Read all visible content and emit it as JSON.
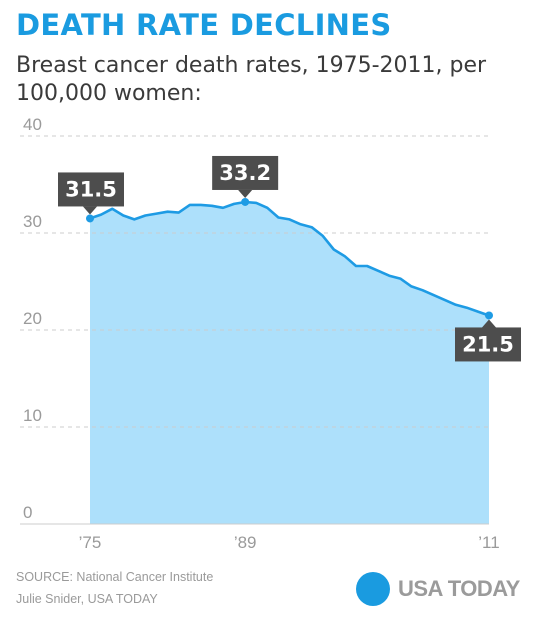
{
  "title": "DEATH RATE DECLINES",
  "subtitle": "Breast cancer death rates, 1975-2011, per 100,000 women:",
  "source_line": "SOURCE:  National Cancer Institute",
  "credit_line": "Julie Snider, USA TODAY",
  "brand": "USA TODAY",
  "colors": {
    "title": "#1a9be0",
    "line": "#1e9be4",
    "area": "#ade0fb",
    "callout": "#4d4d4d",
    "grid": "#cccccc",
    "tick_label": "#9a9a9a",
    "brand_dot": "#1a9be0",
    "brand_text": "#9b9b9b"
  },
  "chart_data": {
    "type": "area",
    "ylim": [
      0,
      40
    ],
    "xlim": [
      1975,
      2011
    ],
    "yticks": [
      {
        "value": 0,
        "label": "0"
      },
      {
        "value": 10,
        "label": "10"
      },
      {
        "value": 20,
        "label": "20"
      },
      {
        "value": 30,
        "label": "30"
      },
      {
        "value": 40,
        "label": "40"
      }
    ],
    "xticks": [
      {
        "value": 1975,
        "label": "’75"
      },
      {
        "value": 1989,
        "label": "’89"
      },
      {
        "value": 2011,
        "label": "’11"
      }
    ],
    "grid": true,
    "x": [
      1975,
      1976,
      1977,
      1978,
      1979,
      1980,
      1981,
      1982,
      1983,
      1984,
      1985,
      1986,
      1987,
      1988,
      1989,
      1990,
      1991,
      1992,
      1993,
      1994,
      1995,
      1996,
      1997,
      1998,
      1999,
      2000,
      2001,
      2002,
      2003,
      2004,
      2005,
      2006,
      2007,
      2008,
      2009,
      2010,
      2011
    ],
    "values": [
      31.5,
      31.9,
      32.5,
      31.8,
      31.4,
      31.8,
      32.0,
      32.2,
      32.1,
      32.9,
      32.9,
      32.8,
      32.6,
      33.0,
      33.2,
      33.1,
      32.6,
      31.6,
      31.4,
      30.9,
      30.6,
      29.7,
      28.3,
      27.6,
      26.6,
      26.6,
      26.1,
      25.6,
      25.3,
      24.5,
      24.1,
      23.6,
      23.1,
      22.6,
      22.3,
      21.9,
      21.5
    ],
    "annotations": [
      {
        "x": 1975,
        "value": 31.5,
        "label": "31.5",
        "position": "above"
      },
      {
        "x": 1989,
        "value": 33.2,
        "label": "33.2",
        "position": "above"
      },
      {
        "x": 2011,
        "value": 21.5,
        "label": "21.5",
        "position": "below"
      }
    ]
  }
}
